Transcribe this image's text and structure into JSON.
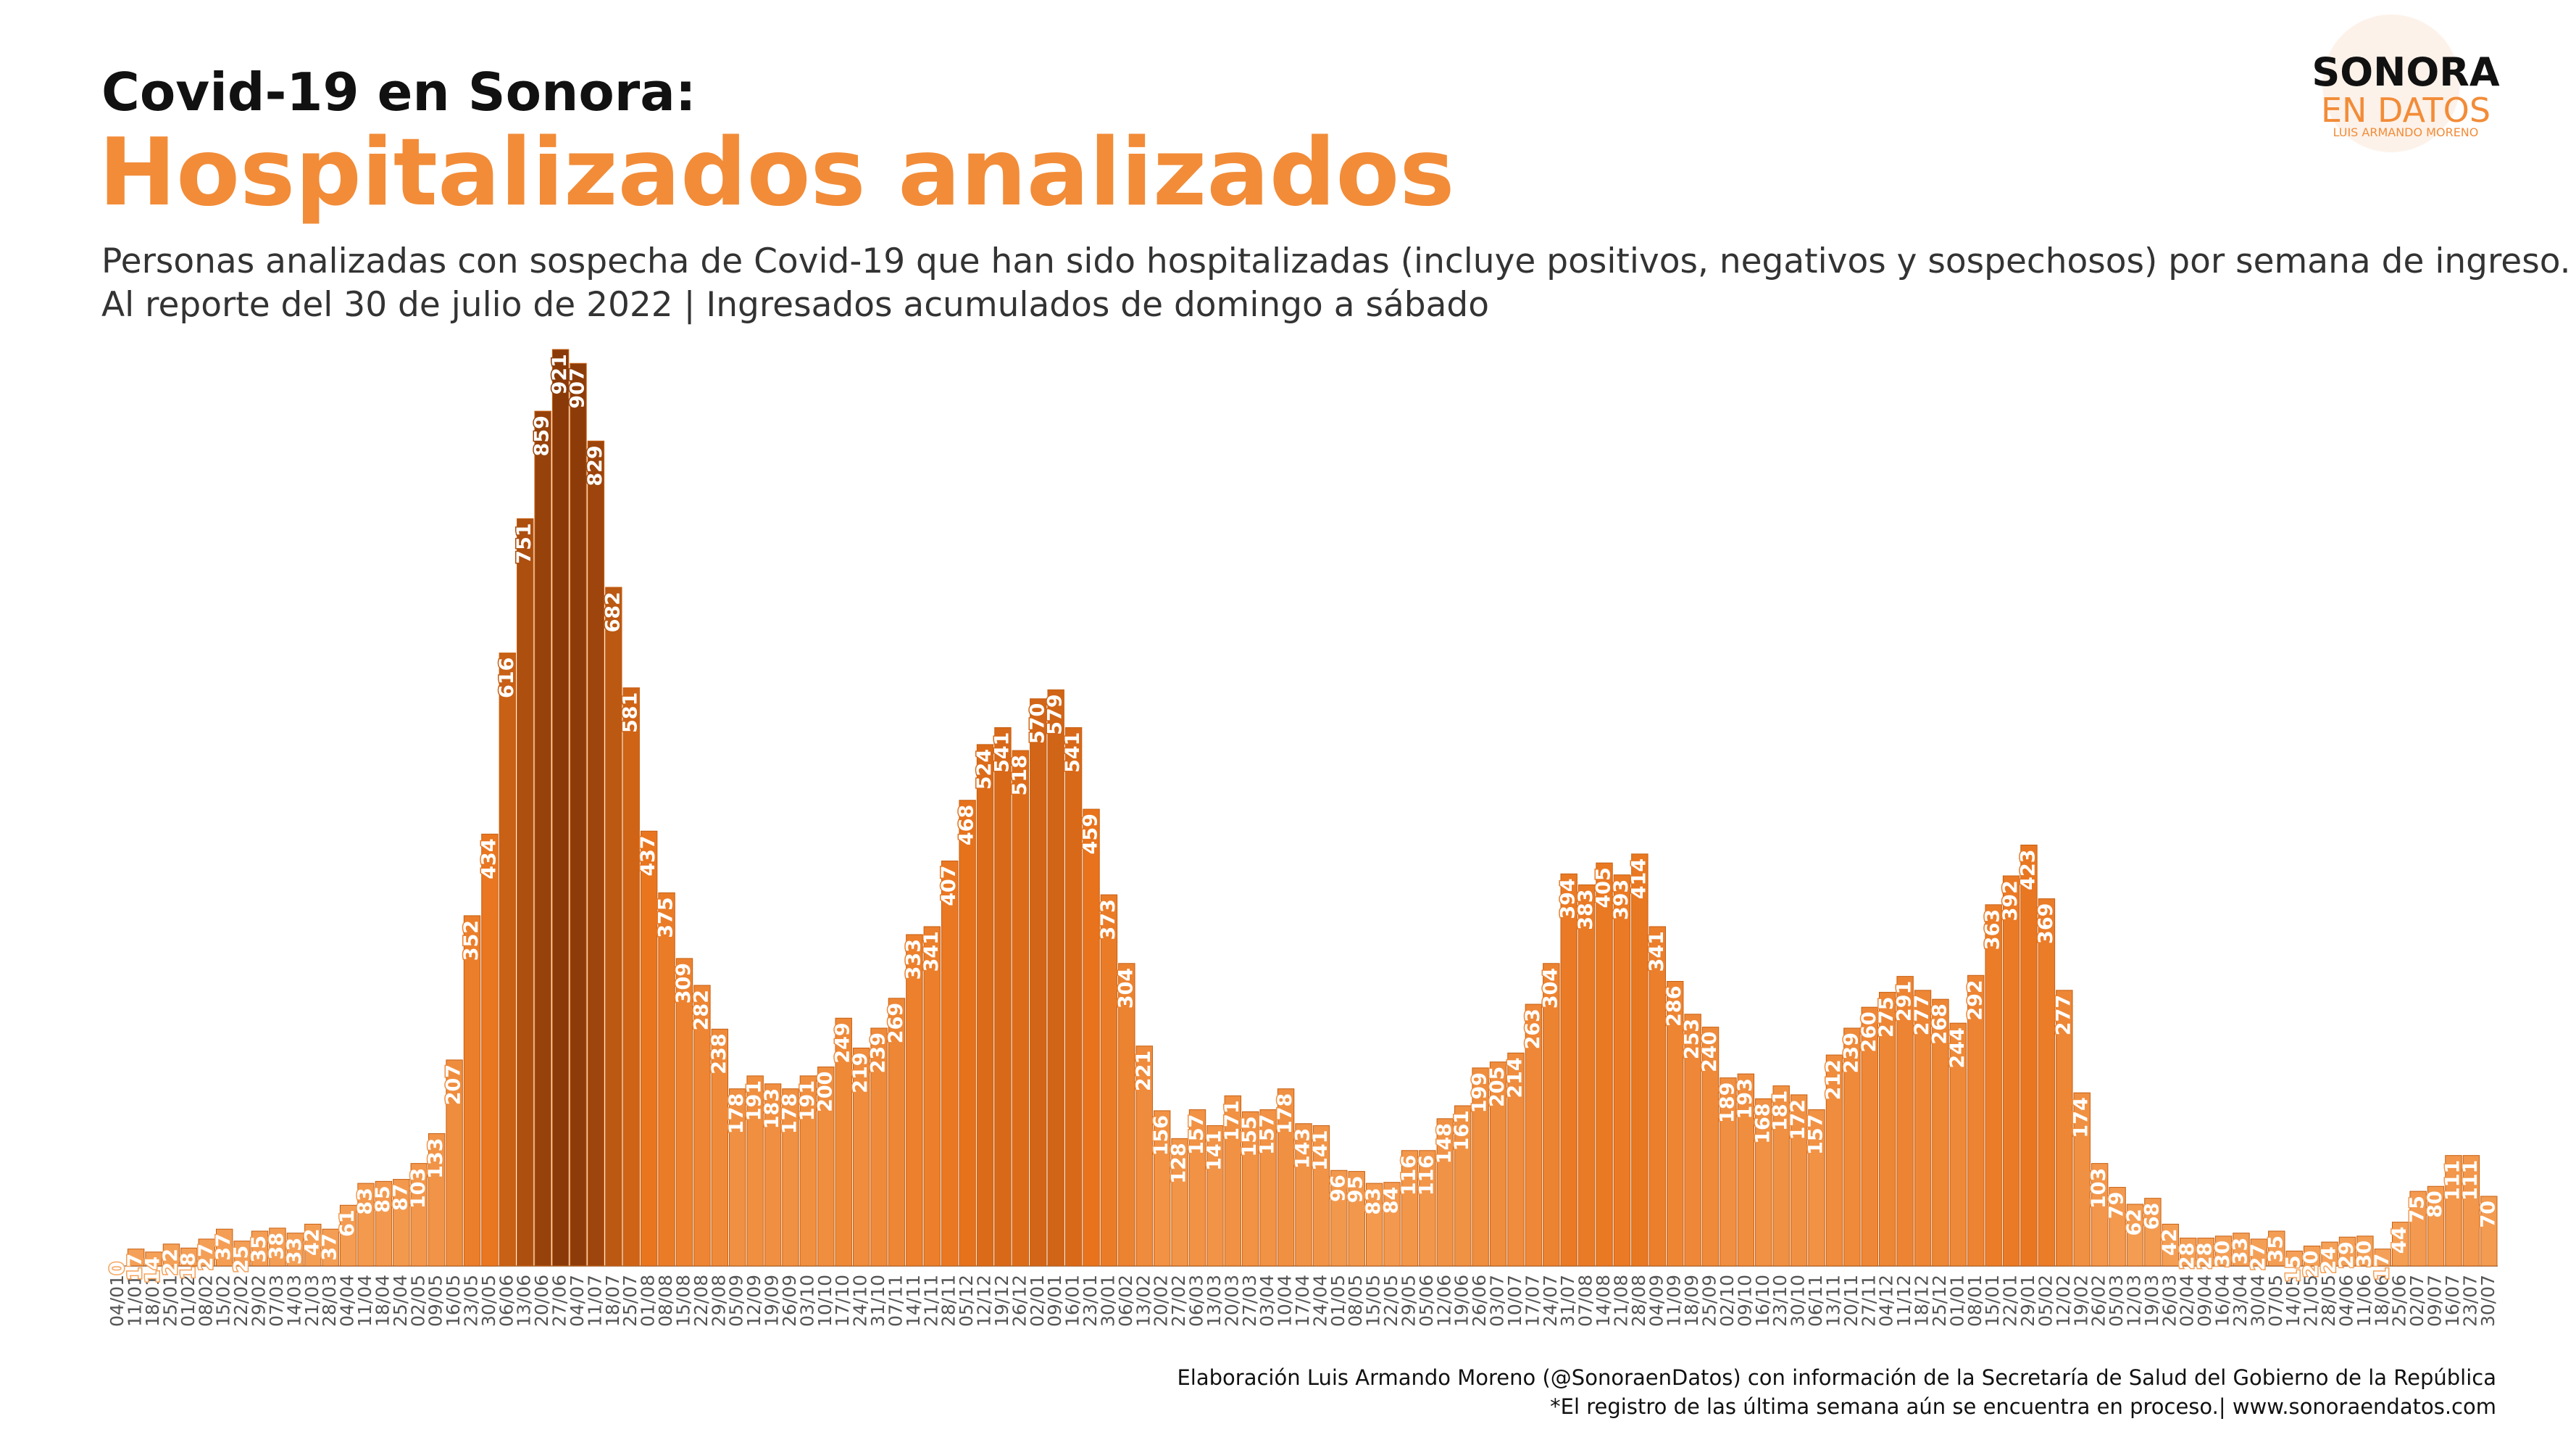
{
  "chart_data": {
    "type": "bar",
    "title": "Covid-19  en Sonora:",
    "subtitle": "Hospitalizados analizados",
    "description": [
      "Personas analizadas con sospecha de Covid-19 que han sido hospitalizadas (incluye positivos, negativos y sospechosos) por semana de ingreso.",
      "Al reporte del 30 de julio de 2022 | Ingresados acumulados de domingo a sábado"
    ],
    "logo": {
      "name": "SONORA",
      "tagline": "EN DATOS",
      "author": "LUIS ARMANDO MORENO"
    },
    "footer": [
      "Elaboración Luis Armando Moreno (@SonoraenDatos) con información de la Secretaría de Salud del Gobierno de la República",
      "*El registro de las última semana aún se encuentra en proceso.| www.sonoraendatos.com"
    ],
    "categories": [
      "04/01",
      "11/01",
      "18/01",
      "25/01",
      "01/02",
      "08/02",
      "15/02",
      "22/02",
      "29/02",
      "07/03",
      "14/03",
      "21/03",
      "28/03",
      "04/04",
      "11/04",
      "18/04",
      "25/04",
      "02/05",
      "09/05",
      "16/05",
      "23/05",
      "30/05",
      "06/06",
      "13/06",
      "20/06",
      "27/06",
      "04/07",
      "11/07",
      "18/07",
      "25/07",
      "01/08",
      "08/08",
      "15/08",
      "22/08",
      "29/08",
      "05/09",
      "12/09",
      "19/09",
      "26/09",
      "03/10",
      "10/10",
      "17/10",
      "24/10",
      "31/10",
      "07/11",
      "14/11",
      "21/11",
      "28/11",
      "05/12",
      "12/12",
      "19/12",
      "26/12",
      "02/01",
      "09/01",
      "16/01",
      "23/01",
      "30/01",
      "06/02",
      "13/02",
      "20/02",
      "27/02",
      "06/03",
      "13/03",
      "20/03",
      "27/03",
      "03/04",
      "10/04",
      "17/04",
      "24/04",
      "01/05",
      "08/05",
      "15/05",
      "22/05",
      "29/05",
      "05/06",
      "12/06",
      "19/06",
      "26/06",
      "03/07",
      "10/07",
      "17/07",
      "24/07",
      "31/07",
      "07/08",
      "14/08",
      "21/08",
      "28/08",
      "04/09",
      "11/09",
      "18/09",
      "25/09",
      "02/10",
      "09/10",
      "16/10",
      "23/10",
      "30/10",
      "06/11",
      "13/11",
      "20/11",
      "27/11",
      "04/12",
      "11/12",
      "18/12",
      "25/12",
      "01/01",
      "08/01",
      "15/01",
      "22/01",
      "29/01",
      "05/02",
      "12/02",
      "19/02",
      "26/02",
      "05/03",
      "12/03",
      "19/03",
      "26/03",
      "02/04",
      "09/04",
      "16/04",
      "23/04",
      "30/04",
      "07/05",
      "14/05",
      "21/05",
      "28/05",
      "04/06",
      "11/06",
      "18/06",
      "25/06",
      "02/07",
      "09/07",
      "16/07",
      "23/07",
      "30/07"
    ],
    "values": [
      0,
      17,
      14,
      22,
      18,
      27,
      37,
      25,
      35,
      38,
      33,
      42,
      37,
      61,
      83,
      85,
      87,
      103,
      133,
      207,
      352,
      434,
      616,
      751,
      859,
      921,
      907,
      829,
      682,
      581,
      437,
      375,
      309,
      282,
      238,
      178,
      191,
      183,
      178,
      191,
      200,
      249,
      219,
      239,
      269,
      333,
      341,
      407,
      468,
      524,
      541,
      518,
      570,
      579,
      541,
      459,
      373,
      304,
      221,
      156,
      128,
      157,
      141,
      171,
      155,
      157,
      178,
      143,
      141,
      96,
      95,
      83,
      84,
      116,
      116,
      148,
      161,
      199,
      205,
      214,
      263,
      304,
      394,
      383,
      405,
      393,
      414,
      341,
      286,
      253,
      240,
      189,
      193,
      168,
      181,
      172,
      157,
      212,
      239,
      260,
      275,
      291,
      277,
      268,
      244,
      292,
      363,
      392,
      423,
      369,
      277,
      174,
      103,
      79,
      62,
      68,
      42,
      28,
      28,
      30,
      33,
      27,
      35,
      15,
      20,
      24,
      29,
      30,
      17,
      44,
      75,
      80,
      111,
      111,
      70
    ],
    "colors": [
      "#f5a25a",
      "#e8731c",
      "#8a3a08"
    ],
    "ylim": [
      0,
      921
    ]
  }
}
